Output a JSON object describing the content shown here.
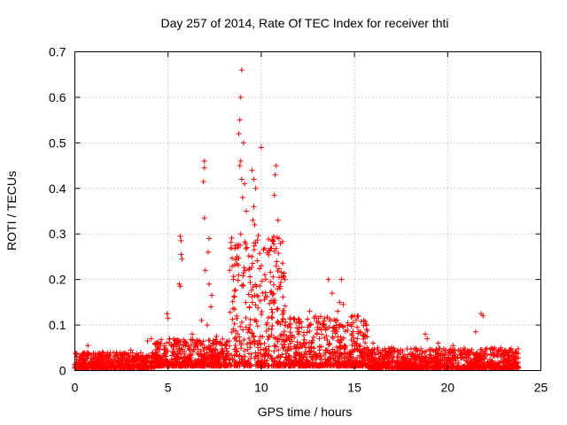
{
  "chart_data": {
    "type": "scatter",
    "title": "Day 257 of 2014, Rate Of TEC Index for receiver thti",
    "xlabel": "GPS time / hours",
    "ylabel": "ROTI / TECUs",
    "xlim": [
      0,
      25
    ],
    "ylim": [
      0,
      0.7
    ],
    "xticks": [
      0,
      5,
      10,
      15,
      20,
      25
    ],
    "yticks": [
      0,
      0.1,
      0.2,
      0.3,
      0.4,
      0.5,
      0.6,
      0.7
    ],
    "xtick_labels": [
      "0",
      "5",
      "10",
      "15",
      "20",
      "25"
    ],
    "ytick_labels": [
      "0",
      "0.1",
      "0.2",
      "0.3",
      "0.4",
      "0.5",
      "0.6",
      "0.7"
    ],
    "grid": true,
    "marker": "+",
    "color": "#ff0000",
    "x_range_of_data": [
      0,
      23.8
    ],
    "series": [
      {
        "name": "ROTI",
        "points": [
          [
            8.95,
            0.66
          ],
          [
            8.9,
            0.6
          ],
          [
            8.85,
            0.55
          ],
          [
            8.8,
            0.52
          ],
          [
            9.05,
            0.5
          ],
          [
            10.0,
            0.49
          ],
          [
            8.9,
            0.46
          ],
          [
            6.95,
            0.46
          ],
          [
            6.95,
            0.445
          ],
          [
            8.85,
            0.45
          ],
          [
            9.5,
            0.44
          ],
          [
            9.6,
            0.42
          ],
          [
            10.8,
            0.45
          ],
          [
            10.75,
            0.43
          ],
          [
            6.9,
            0.415
          ],
          [
            8.95,
            0.42
          ],
          [
            9.1,
            0.41
          ],
          [
            9.7,
            0.4
          ],
          [
            10.7,
            0.385
          ],
          [
            9.0,
            0.38
          ],
          [
            9.6,
            0.36
          ],
          [
            9.2,
            0.35
          ],
          [
            6.95,
            0.335
          ],
          [
            9.55,
            0.33
          ],
          [
            9.65,
            0.32
          ],
          [
            10.9,
            0.33
          ],
          [
            8.9,
            0.3
          ],
          [
            5.65,
            0.295
          ],
          [
            5.7,
            0.285
          ],
          [
            7.2,
            0.29
          ],
          [
            10.95,
            0.29
          ],
          [
            9.7,
            0.28
          ],
          [
            5.7,
            0.255
          ],
          [
            5.75,
            0.245
          ],
          [
            7.15,
            0.26
          ],
          [
            8.7,
            0.25
          ],
          [
            9.5,
            0.25
          ],
          [
            10.0,
            0.23
          ],
          [
            10.8,
            0.23
          ],
          [
            7.0,
            0.22
          ],
          [
            8.5,
            0.2
          ],
          [
            13.6,
            0.2
          ],
          [
            14.3,
            0.2
          ],
          [
            5.6,
            0.19
          ],
          [
            5.65,
            0.185
          ],
          [
            7.2,
            0.19
          ],
          [
            7.35,
            0.165
          ],
          [
            11.0,
            0.18
          ],
          [
            13.8,
            0.17
          ],
          [
            14.2,
            0.15
          ],
          [
            14.4,
            0.145
          ],
          [
            7.3,
            0.14
          ],
          [
            12.6,
            0.13
          ],
          [
            14.1,
            0.13
          ],
          [
            21.8,
            0.125
          ],
          [
            21.9,
            0.12
          ],
          [
            4.95,
            0.125
          ],
          [
            5.0,
            0.115
          ],
          [
            15.0,
            0.12
          ],
          [
            15.5,
            0.11
          ],
          [
            6.8,
            0.11
          ],
          [
            7.1,
            0.1
          ],
          [
            11.5,
            0.1
          ],
          [
            12.5,
            0.095
          ],
          [
            13.0,
            0.09
          ],
          [
            14.0,
            0.09
          ],
          [
            15.3,
            0.085
          ],
          [
            6.3,
            0.08
          ],
          [
            7.6,
            0.075
          ],
          [
            4.1,
            0.07
          ],
          [
            3.9,
            0.065
          ],
          [
            18.8,
            0.08
          ],
          [
            18.9,
            0.07
          ],
          [
            21.5,
            0.085
          ],
          [
            12.0,
            0.08
          ],
          [
            0.7,
            0.055
          ],
          [
            1.5,
            0.04
          ],
          [
            2.5,
            0.035
          ],
          [
            3.0,
            0.045
          ],
          [
            16.0,
            0.06
          ],
          [
            17.0,
            0.05
          ],
          [
            19.5,
            0.06
          ],
          [
            20.3,
            0.055
          ],
          [
            22.5,
            0.05
          ],
          [
            23.3,
            0.04
          ],
          [
            0.1,
            0.03
          ],
          [
            23.7,
            0.03
          ]
        ],
        "dense_bands": [
          {
            "x": [
              0.0,
              4.3
            ],
            "y": [
              0.005,
              0.04
            ]
          },
          {
            "x": [
              4.3,
              8.3
            ],
            "y": [
              0.01,
              0.07
            ]
          },
          {
            "x": [
              8.3,
              11.3
            ],
            "y": [
              0.01,
              0.3
            ]
          },
          {
            "x": [
              11.3,
              15.7
            ],
            "y": [
              0.01,
              0.12
            ]
          },
          {
            "x": [
              15.7,
              23.8
            ],
            "y": [
              0.005,
              0.05
            ]
          }
        ]
      }
    ]
  }
}
